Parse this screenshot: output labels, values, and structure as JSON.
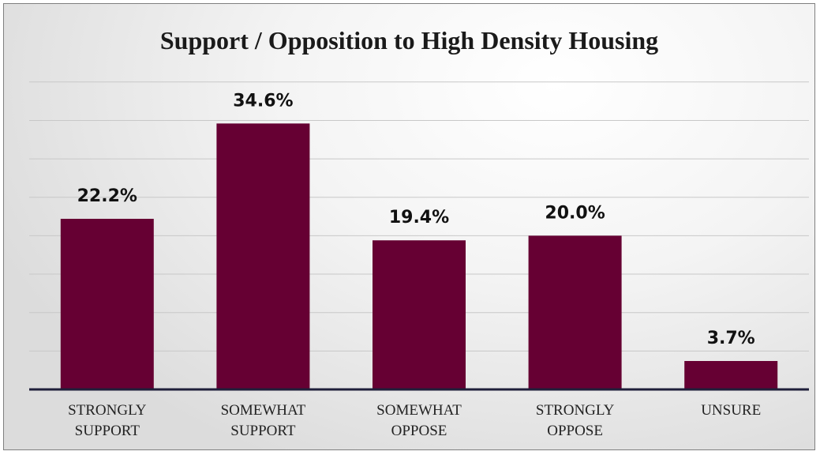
{
  "chart_data": {
    "type": "bar",
    "title": "Support / Opposition to High Density Housing",
    "xlabel": "",
    "ylabel": "",
    "categories": [
      [
        "STRONGLY",
        "SUPPORT"
      ],
      [
        "SOMEWHAT",
        "SUPPORT"
      ],
      [
        "SOMEWHAT",
        "OPPOSE"
      ],
      [
        "STRONGLY",
        "OPPOSE"
      ],
      [
        "UNSURE"
      ]
    ],
    "values": [
      22.2,
      34.6,
      19.4,
      20.0,
      3.7
    ],
    "data_labels": [
      "22.2%",
      "34.6%",
      "19.4%",
      "20.0%",
      "3.7%"
    ],
    "ylim": [
      0,
      40
    ],
    "grid": true,
    "bar_color": "#660033",
    "axis_color": "#1f1f3a",
    "gridline_color": "#c8c8c8"
  }
}
